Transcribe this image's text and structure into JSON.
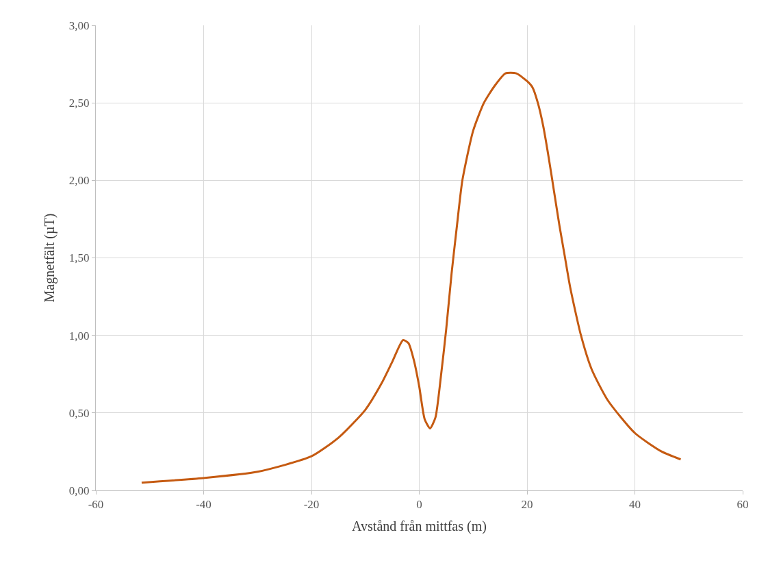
{
  "chart_data": {
    "type": "line",
    "xlabel": "Avstånd från mittfas (m)",
    "ylabel": "Magnetfält (µT)",
    "x": [
      -51.5,
      -40,
      -30,
      -20,
      -15,
      -10,
      -7,
      -5,
      -3,
      -2,
      -1,
      0,
      1,
      2,
      3,
      4,
      5,
      6,
      7,
      8,
      10,
      12,
      14,
      16,
      18,
      20,
      21,
      22,
      23,
      24,
      25,
      26,
      27,
      28,
      30,
      32,
      35,
      40,
      45,
      48.5
    ],
    "series": [
      {
        "color": "#c55a11",
        "values": [
          0.05,
          0.08,
          0.12,
          0.22,
          0.34,
          0.52,
          0.69,
          0.83,
          0.97,
          0.95,
          0.84,
          0.67,
          0.46,
          0.4,
          0.47,
          0.73,
          1.04,
          1.4,
          1.71,
          2.0,
          2.32,
          2.5,
          2.61,
          2.69,
          2.69,
          2.64,
          2.6,
          2.5,
          2.35,
          2.15,
          1.93,
          1.71,
          1.51,
          1.31,
          1.0,
          0.78,
          0.58,
          0.37,
          0.25,
          0.2
        ]
      }
    ],
    "xlim": [
      -60,
      60
    ],
    "xticks": [
      -60,
      -40,
      -20,
      0,
      20,
      40,
      60
    ],
    "ylim": [
      0,
      3
    ],
    "yticks": [
      {
        "value": 0,
        "label": "0,00"
      },
      {
        "value": 0.5,
        "label": "0,50"
      },
      {
        "value": 1,
        "label": "1,00"
      },
      {
        "value": 1.5,
        "label": "1,50"
      },
      {
        "value": 2,
        "label": "2,00"
      },
      {
        "value": 2.5,
        "label": "2,50"
      },
      {
        "value": 3,
        "label": "3,00"
      }
    ],
    "grid": true,
    "legend": false,
    "marker": "none",
    "line_style": "solid"
  }
}
